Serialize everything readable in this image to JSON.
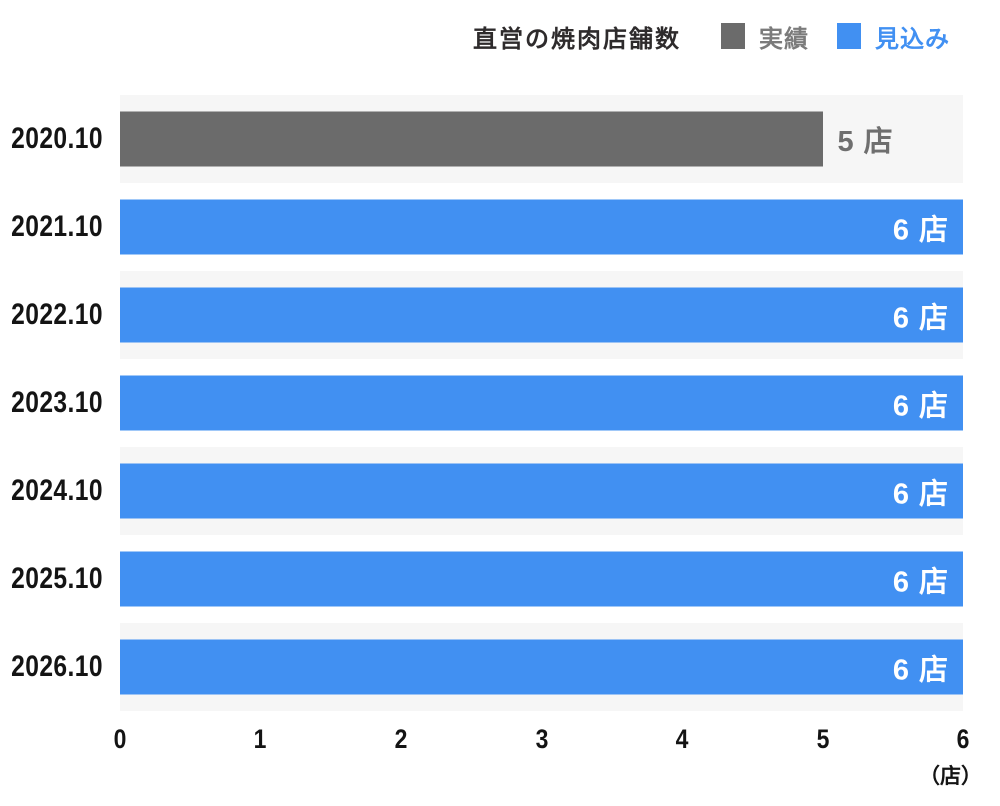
{
  "header": {
    "title": "直営の焼肉店舗数",
    "legend": [
      {
        "name": "actual",
        "label": "実績",
        "swatch_color": "#6b6b6b",
        "text_color": "#7b7b7b"
      },
      {
        "name": "forecast",
        "label": "見込み",
        "swatch_color": "#4190f2",
        "text_color": "#4190f2"
      }
    ]
  },
  "colors": {
    "actual_bar": "#6b6b6b",
    "forecast_bar": "#4190f2",
    "row_band": "#f6f6f6",
    "axis_text": "#141414",
    "title_text": "#2e2b2c",
    "outside_value_text": "#6f6f6f",
    "inside_value_text": "#ffffff"
  },
  "chart_data": {
    "type": "bar",
    "orientation": "horizontal",
    "title": "直営の焼肉店舗数",
    "categories": [
      "2020.10",
      "2021.10",
      "2022.10",
      "2023.10",
      "2024.10",
      "2025.10",
      "2026.10"
    ],
    "series": [
      {
        "name": "実績",
        "color": "#6b6b6b",
        "values": [
          5,
          null,
          null,
          null,
          null,
          null,
          null
        ]
      },
      {
        "name": "見込み",
        "color": "#4190f2",
        "values": [
          null,
          6,
          6,
          6,
          6,
          6,
          6
        ]
      }
    ],
    "rows": [
      {
        "category": "2020.10",
        "series": "実績",
        "value": 5,
        "label": "5 店",
        "label_position": "outside"
      },
      {
        "category": "2021.10",
        "series": "見込み",
        "value": 6,
        "label": "6 店",
        "label_position": "inside"
      },
      {
        "category": "2022.10",
        "series": "見込み",
        "value": 6,
        "label": "6 店",
        "label_position": "inside"
      },
      {
        "category": "2023.10",
        "series": "見込み",
        "value": 6,
        "label": "6 店",
        "label_position": "inside"
      },
      {
        "category": "2024.10",
        "series": "見込み",
        "value": 6,
        "label": "6 店",
        "label_position": "inside"
      },
      {
        "category": "2025.10",
        "series": "見込み",
        "value": 6,
        "label": "6 店",
        "label_position": "inside"
      },
      {
        "category": "2026.10",
        "series": "見込み",
        "value": 6,
        "label": "6 店",
        "label_position": "inside"
      }
    ],
    "xlim": [
      0,
      6
    ],
    "x_ticks": [
      "0",
      "1",
      "2",
      "3",
      "4",
      "5",
      "6"
    ],
    "x_unit": "（店）",
    "grid": false,
    "legend_position": "top-right",
    "row_banding": "even rows have light gray full-width band"
  }
}
